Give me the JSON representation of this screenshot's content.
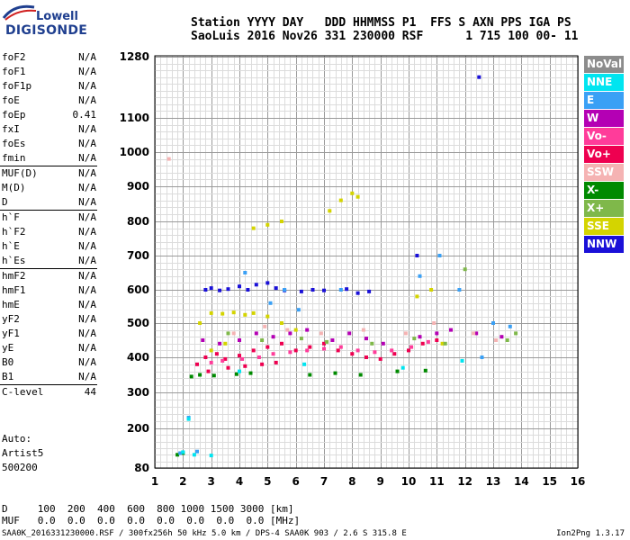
{
  "logo": {
    "line1": "Lowell",
    "line2": "DIGISONDE"
  },
  "header": {
    "line1": "Station YYYY DAY   DDD HHMMSS P1  FFS S AXN PPS IGA PS",
    "line2": "SaoLuis 2016 Nov26 331 230000 RSF      1 715 100 00- 11"
  },
  "params": [
    {
      "group": [
        {
          "k": "foF2",
          "v": "N/A"
        },
        {
          "k": "foF1",
          "v": "N/A"
        },
        {
          "k": "foF1p",
          "v": "N/A"
        },
        {
          "k": "foE",
          "v": "N/A"
        },
        {
          "k": "foEp",
          "v": "0.41"
        },
        {
          "k": "fxI",
          "v": "N/A"
        },
        {
          "k": "foEs",
          "v": "N/A"
        },
        {
          "k": "fmin",
          "v": "N/A"
        }
      ]
    },
    {
      "group": [
        {
          "k": "MUF(D)",
          "v": "N/A"
        },
        {
          "k": "M(D)",
          "v": "N/A"
        },
        {
          "k": "D",
          "v": "N/A"
        }
      ]
    },
    {
      "group": [
        {
          "k": "h`F",
          "v": "N/A"
        },
        {
          "k": "h`F2",
          "v": "N/A"
        },
        {
          "k": "h`E",
          "v": "N/A"
        },
        {
          "k": "h`Es",
          "v": "N/A"
        }
      ]
    },
    {
      "group": [
        {
          "k": "hmF2",
          "v": "N/A"
        },
        {
          "k": "hmF1",
          "v": "N/A"
        },
        {
          "k": "hmE",
          "v": "N/A"
        },
        {
          "k": "yF2",
          "v": "N/A"
        },
        {
          "k": "yF1",
          "v": "N/A"
        },
        {
          "k": "yE",
          "v": "N/A"
        },
        {
          "k": "B0",
          "v": "N/A"
        },
        {
          "k": "B1",
          "v": "N/A"
        }
      ]
    },
    {
      "group": [
        {
          "k": "C-level",
          "v": "44"
        }
      ]
    }
  ],
  "auto": {
    "line1": "Auto:",
    "line2": "Artist5",
    "line3": "500200"
  },
  "legend": [
    {
      "label": "NoVal",
      "color": "#8c8c8c"
    },
    {
      "label": "NNE",
      "color": "#00e5f0"
    },
    {
      "label": "E",
      "color": "#3aa0f5"
    },
    {
      "label": "W",
      "color": "#b400b4"
    },
    {
      "label": "Vo-",
      "color": "#ff3c9a"
    },
    {
      "label": "Vo+",
      "color": "#ee0050"
    },
    {
      "label": "SSW",
      "color": "#f5b3b3"
    },
    {
      "label": "X-",
      "color": "#008a00"
    },
    {
      "label": "X+",
      "color": "#7fb84a"
    },
    {
      "label": "SSE",
      "color": "#d4d400"
    },
    {
      "label": "NNW",
      "color": "#1a10d8"
    }
  ],
  "dmuf": {
    "line1": "D     100  200  400  600  800 1000 1500 3000 [km]",
    "line2": "MUF   0.0  0.0  0.0  0.0  0.0  0.0  0.0  0.0 [MHz]"
  },
  "footer": "SAA0K_2016331230000.RSF / 300fx256h 50 kHz 5.0 km / DPS-4 SAA0K 903 / 2.6 S 315.8 E",
  "version": "Ion2Png 1.3.17",
  "chart_data": {
    "type": "scatter",
    "title": "",
    "xlabel": "",
    "ylabel": "",
    "xlim": [
      1,
      16
    ],
    "ylim": [
      80,
      1280
    ],
    "x_ticks": [
      1,
      2,
      3,
      4,
      5,
      6,
      7,
      8,
      9,
      10,
      11,
      12,
      13,
      14,
      15,
      16
    ],
    "y_tick_labels": [
      80,
      200,
      300,
      400,
      500,
      600,
      700,
      800,
      900,
      1000,
      1100,
      1280
    ],
    "grid": true,
    "legend_position": "right",
    "series": [
      {
        "name": "NNW",
        "color": "#1a10d8",
        "points": [
          [
            2.8,
            600
          ],
          [
            3.0,
            605
          ],
          [
            3.3,
            598
          ],
          [
            3.6,
            602
          ],
          [
            4.0,
            610
          ],
          [
            4.3,
            600
          ],
          [
            4.6,
            615
          ],
          [
            5.0,
            620
          ],
          [
            5.3,
            605
          ],
          [
            5.6,
            598
          ],
          [
            6.2,
            595
          ],
          [
            6.6,
            600
          ],
          [
            7.0,
            598
          ],
          [
            7.8,
            602
          ],
          [
            8.2,
            590
          ],
          [
            8.6,
            595
          ],
          [
            10.3,
            700
          ],
          [
            12.5,
            1220
          ]
        ]
      },
      {
        "name": "SSE",
        "color": "#d4d400",
        "points": [
          [
            3.0,
            530
          ],
          [
            3.4,
            528
          ],
          [
            3.8,
            532
          ],
          [
            4.2,
            525
          ],
          [
            4.5,
            530
          ],
          [
            5.0,
            520
          ],
          [
            5.5,
            500
          ],
          [
            6.0,
            480
          ],
          [
            7.2,
            830
          ],
          [
            7.6,
            860
          ],
          [
            8.0,
            880
          ],
          [
            8.2,
            870
          ],
          [
            4.5,
            780
          ],
          [
            5.0,
            790
          ],
          [
            5.5,
            800
          ],
          [
            2.6,
            500
          ],
          [
            10.3,
            580
          ],
          [
            10.8,
            600
          ],
          [
            11.2,
            440
          ],
          [
            3.0,
            420
          ],
          [
            3.5,
            440
          ]
        ]
      },
      {
        "name": "Vo+",
        "color": "#ee0050",
        "points": [
          [
            2.5,
            380
          ],
          [
            2.8,
            400
          ],
          [
            3.2,
            410
          ],
          [
            3.5,
            395
          ],
          [
            4.0,
            405
          ],
          [
            4.5,
            420
          ],
          [
            5.0,
            430
          ],
          [
            5.5,
            440
          ],
          [
            6.0,
            420
          ],
          [
            6.5,
            430
          ],
          [
            7.0,
            440
          ],
          [
            7.5,
            420
          ],
          [
            8.0,
            410
          ],
          [
            8.5,
            400
          ],
          [
            9.0,
            395
          ],
          [
            9.5,
            410
          ],
          [
            10.0,
            420
          ],
          [
            10.5,
            440
          ],
          [
            11.0,
            450
          ],
          [
            2.9,
            360
          ],
          [
            3.6,
            370
          ],
          [
            4.2,
            375
          ],
          [
            4.8,
            380
          ],
          [
            5.3,
            385
          ]
        ]
      },
      {
        "name": "Vo-",
        "color": "#ff3c9a",
        "points": [
          [
            3.0,
            385
          ],
          [
            3.4,
            390
          ],
          [
            4.1,
            395
          ],
          [
            4.7,
            400
          ],
          [
            5.2,
            410
          ],
          [
            5.8,
            415
          ],
          [
            6.4,
            420
          ],
          [
            7.0,
            425
          ],
          [
            7.6,
            430
          ],
          [
            8.2,
            420
          ],
          [
            8.8,
            415
          ],
          [
            9.4,
            420
          ],
          [
            10.1,
            430
          ],
          [
            10.7,
            445
          ]
        ]
      },
      {
        "name": "W",
        "color": "#b400b4",
        "points": [
          [
            2.7,
            450
          ],
          [
            3.3,
            440
          ],
          [
            4.0,
            450
          ],
          [
            4.6,
            470
          ],
          [
            5.2,
            460
          ],
          [
            5.8,
            470
          ],
          [
            6.4,
            480
          ],
          [
            7.3,
            450
          ],
          [
            7.9,
            470
          ],
          [
            8.5,
            455
          ],
          [
            9.1,
            440
          ],
          [
            10.4,
            460
          ],
          [
            11.0,
            470
          ],
          [
            11.5,
            480
          ],
          [
            12.4,
            470
          ],
          [
            13.3,
            460
          ]
        ]
      },
      {
        "name": "X-",
        "color": "#008a00",
        "points": [
          [
            2.3,
            345
          ],
          [
            2.6,
            350
          ],
          [
            3.1,
            348
          ],
          [
            3.9,
            352
          ],
          [
            4.4,
            355
          ],
          [
            6.5,
            350
          ],
          [
            7.4,
            355
          ],
          [
            8.3,
            350
          ],
          [
            9.6,
            360
          ],
          [
            10.6,
            362
          ],
          [
            1.8,
            120
          ],
          [
            2.0,
            125
          ]
        ]
      },
      {
        "name": "X+",
        "color": "#7fb84a",
        "points": [
          [
            3.6,
            470
          ],
          [
            4.8,
            450
          ],
          [
            6.2,
            455
          ],
          [
            7.1,
            445
          ],
          [
            8.7,
            440
          ],
          [
            10.2,
            455
          ],
          [
            11.3,
            440
          ],
          [
            13.5,
            450
          ],
          [
            13.8,
            470
          ],
          [
            12.0,
            660
          ]
        ]
      },
      {
        "name": "E",
        "color": "#3aa0f5",
        "points": [
          [
            4.2,
            650
          ],
          [
            5.1,
            560
          ],
          [
            5.6,
            600
          ],
          [
            6.1,
            540
          ],
          [
            7.6,
            600
          ],
          [
            10.4,
            640
          ],
          [
            11.1,
            700
          ],
          [
            11.8,
            600
          ],
          [
            12.6,
            400
          ],
          [
            13.0,
            500
          ],
          [
            13.6,
            490
          ],
          [
            2.2,
            230
          ],
          [
            1.9,
            125
          ],
          [
            2.5,
            130
          ]
        ]
      },
      {
        "name": "NNE",
        "color": "#00e5f0",
        "points": [
          [
            2.4,
            120
          ],
          [
            2.0,
            128
          ],
          [
            3.0,
            118
          ],
          [
            2.2,
            226
          ],
          [
            4.0,
            360
          ],
          [
            6.3,
            380
          ],
          [
            9.8,
            370
          ],
          [
            11.9,
            390
          ]
        ]
      },
      {
        "name": "SSW",
        "color": "#f5b3b3",
        "points": [
          [
            3.8,
            470
          ],
          [
            4.9,
            490
          ],
          [
            5.7,
            480
          ],
          [
            6.9,
            470
          ],
          [
            8.4,
            480
          ],
          [
            9.9,
            470
          ],
          [
            10.9,
            500
          ],
          [
            12.3,
            470
          ],
          [
            13.1,
            450
          ],
          [
            1.5,
            980
          ]
        ]
      }
    ]
  }
}
